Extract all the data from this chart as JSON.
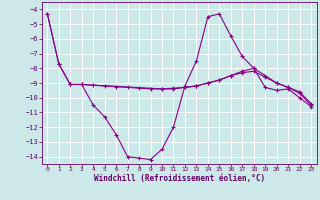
{
  "xlabel": "Windchill (Refroidissement éolien,°C)",
  "background_color": "#cce8e8",
  "grid_color": "#ffffff",
  "line_color": "#880088",
  "ylim": [
    -14.5,
    -3.5
  ],
  "xlim": [
    -0.5,
    23.5
  ],
  "yticks": [
    -4,
    -5,
    -6,
    -7,
    -8,
    -9,
    -10,
    -11,
    -12,
    -13,
    -14
  ],
  "xticks": [
    0,
    1,
    2,
    3,
    4,
    5,
    6,
    7,
    8,
    9,
    10,
    11,
    12,
    13,
    14,
    15,
    16,
    17,
    18,
    19,
    20,
    21,
    22,
    23
  ],
  "line1_x": [
    0,
    1,
    2,
    3,
    4,
    5,
    6,
    7,
    8,
    9,
    10,
    11,
    12,
    13,
    14,
    15,
    16,
    17,
    18,
    19,
    20,
    21,
    22,
    23
  ],
  "line1_y": [
    -4.3,
    -7.7,
    -9.1,
    -9.1,
    -10.5,
    -11.3,
    -12.5,
    -14.0,
    -14.1,
    -14.2,
    -13.5,
    -12.0,
    -9.2,
    -7.5,
    -4.5,
    -4.3,
    -5.8,
    -7.2,
    -8.0,
    -9.3,
    -9.5,
    -9.4,
    -10.0,
    -10.6
  ],
  "line2_x": [
    0,
    1,
    2,
    3,
    4,
    5,
    6,
    7,
    8,
    9,
    10,
    11,
    12,
    13,
    14,
    15,
    16,
    17,
    18,
    19,
    20,
    21,
    22,
    23
  ],
  "line2_y": [
    -4.3,
    -7.7,
    -9.1,
    -9.1,
    -9.15,
    -9.2,
    -9.25,
    -9.3,
    -9.35,
    -9.4,
    -9.4,
    -9.35,
    -9.3,
    -9.2,
    -9.0,
    -8.8,
    -8.5,
    -8.3,
    -8.2,
    -8.6,
    -9.0,
    -9.3,
    -9.6,
    -10.4
  ],
  "line3_x": [
    2,
    3,
    10,
    11,
    12,
    13,
    14,
    15,
    16,
    17,
    18,
    19,
    20,
    21,
    22,
    23
  ],
  "line3_y": [
    -9.1,
    -9.1,
    -9.4,
    -9.4,
    -9.3,
    -9.2,
    -9.0,
    -8.8,
    -8.5,
    -8.2,
    -8.0,
    -8.5,
    -9.0,
    -9.3,
    -9.7,
    -10.5
  ]
}
